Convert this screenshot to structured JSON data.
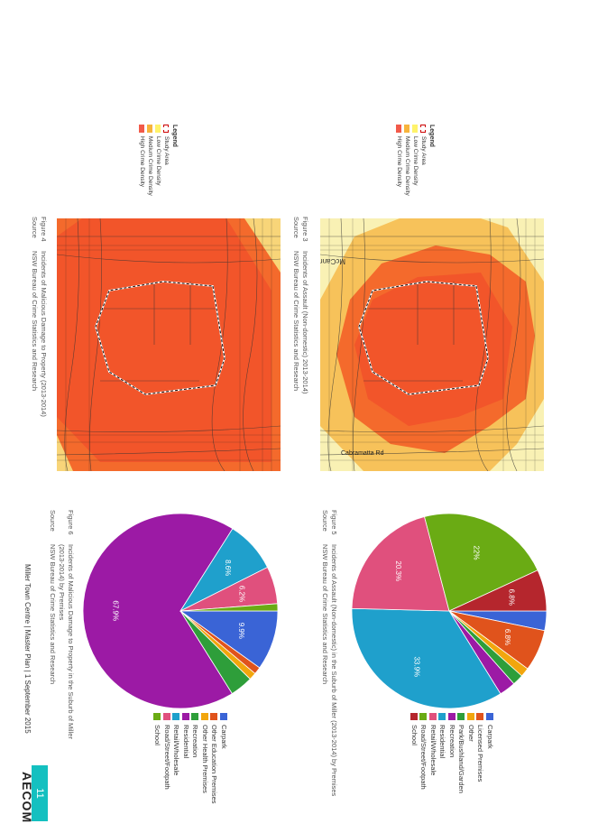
{
  "maps": {
    "top": {
      "figure_no": "Figure 3",
      "figure_title": "Incidents of Assault (Non-domestic) 2013-2014)",
      "source_label": "Source",
      "source_text": "NSW Bureau of Crime Statistics and Research",
      "park_label": "McCann Park",
      "street_label": "Cabramatta Rd"
    },
    "bottom": {
      "figure_no": "Figure 4",
      "figure_title": "Incidents of Malicious Damage to Property (2013-2014)",
      "source_label": "Source",
      "source_text": "NSW Bureau of Crime Statistics and Research"
    }
  },
  "legend": {
    "title": "Legend",
    "items": [
      {
        "label": "Study Area",
        "color": "#cc0000"
      },
      {
        "label": "Low Crime Density",
        "color": "#fff36b"
      },
      {
        "label": "Medium Crime Density",
        "color": "#f7b43c"
      },
      {
        "label": "High Crime Density",
        "color": "#f25a4a"
      }
    ]
  },
  "pie_legend": [
    {
      "label": "Carpark",
      "color": "#3a64d6"
    },
    {
      "label": "Licensed Premises",
      "color": "#e0531c"
    },
    {
      "label": "Other",
      "color": "#f2a60d"
    },
    {
      "label": "Park/Bushland/Garden",
      "color": "#2e9e3a"
    },
    {
      "label": "Recreation",
      "color": "#9c1aa5"
    },
    {
      "label": "Residential",
      "color": "#1fa0cc"
    },
    {
      "label": "Retail/Wholesale",
      "color": "#e0507d"
    },
    {
      "label": "Road/Street/Footpath",
      "color": "#6aab14"
    },
    {
      "label": "School",
      "color": "#b5262d"
    }
  ],
  "pie_legend_bottom": [
    {
      "label": "Carpark",
      "color": "#3a64d6"
    },
    {
      "label": "Other Education Premises",
      "color": "#e0531c"
    },
    {
      "label": "Other Health Premises",
      "color": "#f2a60d"
    },
    {
      "label": "Recreation",
      "color": "#2e9e3a"
    },
    {
      "label": "Residential",
      "color": "#9c1aa5"
    },
    {
      "label": "Retail/Wholesale",
      "color": "#1fa0cc"
    },
    {
      "label": "Road/Street/Footpath",
      "color": "#e0507d"
    },
    {
      "label": "School",
      "color": "#6aab14"
    }
  ],
  "charts": {
    "top": {
      "figure_no": "Figure 5",
      "figure_title": "Incidents of Assault (Non-domestic) in the Suburb of Miller (2013-2014) by Premises",
      "source_label": "Source",
      "source_text": "NSW Bureau of Crime Statistics and Research"
    },
    "bottom": {
      "figure_no": "Figure 6",
      "figure_title_1": "Incidents of Malicious Damage to Property in the Suburb of Miller",
      "figure_title_2": "(2013-2014) by Premises",
      "source_label": "Source",
      "source_text": "NSW Bureau of Crime Statistics and Research"
    }
  },
  "chart_data": [
    {
      "type": "pie",
      "title": "Incidents of Assault (Non-domestic) in the Suburb of Miller (2013-2014) by Premises",
      "categories": [
        "Carpark",
        "Licensed Premises",
        "Other",
        "Park/Bushland/Garden",
        "Recreation",
        "Residential",
        "Retail/Wholesale",
        "Road/Street/Footpath",
        "School"
      ],
      "values": [
        3.2,
        6.8,
        1.5,
        1.8,
        2.7,
        33.9,
        20.3,
        22.0,
        6.8
      ],
      "labels": [
        "",
        "6.8%",
        "",
        "",
        "",
        "33.9%",
        "20.3%",
        "22%",
        "6.8%"
      ],
      "legend": "right"
    },
    {
      "type": "pie",
      "title": "Incidents of Malicious Damage to Property in the Suburb of Miller (2013-2014) by Premises",
      "categories": [
        "Carpark",
        "Other Education Premises",
        "Other Health Premises",
        "Recreation",
        "Residential",
        "Retail/Wholesale",
        "Road/Street/Footpath",
        "School"
      ],
      "values": [
        9.9,
        1.2,
        1.2,
        3.8,
        67.9,
        8.6,
        6.2,
        1.2
      ],
      "labels": [
        "9.9%",
        "",
        "",
        "",
        "67.9%",
        "8.6%",
        "6.2%",
        ""
      ],
      "legend": "right"
    }
  ],
  "footer": {
    "text": "Miller Town Centre  |  Master Plan  |  1 September 2015",
    "page": "11",
    "logo": "AECOM"
  }
}
